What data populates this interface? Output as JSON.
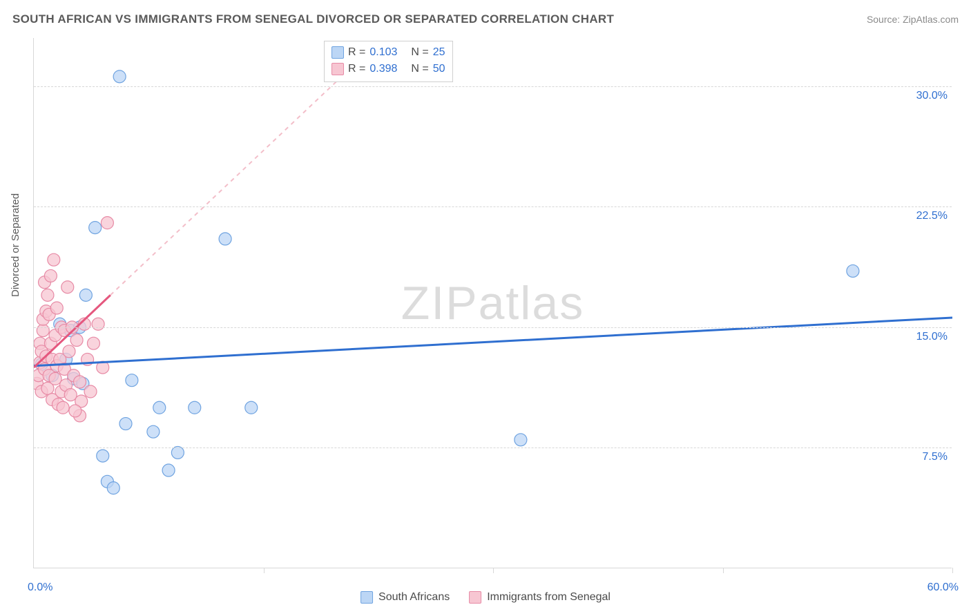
{
  "header": {
    "title": "SOUTH AFRICAN VS IMMIGRANTS FROM SENEGAL DIVORCED OR SEPARATED CORRELATION CHART",
    "source": "Source: ZipAtlas.com"
  },
  "y_axis": {
    "label": "Divorced or Separated"
  },
  "watermark": "ZIPatlas",
  "chart": {
    "type": "scatter",
    "xlim": [
      0,
      60
    ],
    "ylim": [
      0,
      33
    ],
    "x_start_label": "0.0%",
    "x_end_label": "60.0%",
    "xtick_positions": [
      0,
      15,
      30,
      45,
      60
    ],
    "yticks": [
      {
        "v": 7.5,
        "label": "7.5%"
      },
      {
        "v": 15.0,
        "label": "15.0%"
      },
      {
        "v": 22.5,
        "label": "22.5%"
      },
      {
        "v": 30.0,
        "label": "30.0%"
      }
    ],
    "background_color": "#ffffff",
    "grid_color": "#d7d7d7",
    "marker_radius": 9,
    "marker_stroke_width": 1.2,
    "series": [
      {
        "name": "South Africans",
        "fill": "#bcd6f5",
        "stroke": "#6fa3e0",
        "fill_opacity": 0.75,
        "regression": {
          "x1": 0,
          "y1": 12.6,
          "x2": 60,
          "y2": 15.6,
          "color": "#2f6fd0",
          "width": 3,
          "dash": null,
          "extend_dash": false
        },
        "points": [
          [
            0.5,
            12.7
          ],
          [
            1.2,
            12.0
          ],
          [
            1.7,
            15.2
          ],
          [
            2.1,
            13.0
          ],
          [
            2.4,
            14.8
          ],
          [
            2.6,
            11.8
          ],
          [
            3.0,
            15.0
          ],
          [
            3.2,
            11.5
          ],
          [
            3.4,
            17.0
          ],
          [
            4.0,
            21.2
          ],
          [
            4.5,
            7.0
          ],
          [
            4.8,
            5.4
          ],
          [
            5.2,
            5.0
          ],
          [
            5.6,
            30.6
          ],
          [
            6.0,
            9.0
          ],
          [
            6.4,
            11.7
          ],
          [
            7.8,
            8.5
          ],
          [
            8.2,
            10.0
          ],
          [
            8.8,
            6.1
          ],
          [
            9.4,
            7.2
          ],
          [
            10.5,
            10.0
          ],
          [
            12.5,
            20.5
          ],
          [
            14.2,
            10.0
          ],
          [
            31.8,
            8.0
          ],
          [
            53.5,
            18.5
          ]
        ]
      },
      {
        "name": "Immigrants from Senegal",
        "fill": "#f7c6d2",
        "stroke": "#e78aa5",
        "fill_opacity": 0.75,
        "regression": {
          "x1": 0,
          "y1": 12.5,
          "x2": 5.0,
          "y2": 17.0,
          "color": "#e5577e",
          "width": 3,
          "dash": null,
          "extend_dash": true,
          "dash_x2": 22,
          "dash_y2": 32.3,
          "dash_color": "#f3bec9"
        },
        "points": [
          [
            0.2,
            11.5
          ],
          [
            0.3,
            12.0
          ],
          [
            0.4,
            12.8
          ],
          [
            0.4,
            14.0
          ],
          [
            0.5,
            13.5
          ],
          [
            0.5,
            11.0
          ],
          [
            0.6,
            14.8
          ],
          [
            0.6,
            15.5
          ],
          [
            0.7,
            12.4
          ],
          [
            0.7,
            17.8
          ],
          [
            0.8,
            13.2
          ],
          [
            0.8,
            16.0
          ],
          [
            0.9,
            11.2
          ],
          [
            0.9,
            17.0
          ],
          [
            1.0,
            12.0
          ],
          [
            1.0,
            15.8
          ],
          [
            1.1,
            14.0
          ],
          [
            1.1,
            18.2
          ],
          [
            1.2,
            13.0
          ],
          [
            1.2,
            10.5
          ],
          [
            1.3,
            19.2
          ],
          [
            1.4,
            11.8
          ],
          [
            1.4,
            14.5
          ],
          [
            1.5,
            16.2
          ],
          [
            1.5,
            12.6
          ],
          [
            1.6,
            10.2
          ],
          [
            1.7,
            13.0
          ],
          [
            1.8,
            15.0
          ],
          [
            1.8,
            11.0
          ],
          [
            1.9,
            10.0
          ],
          [
            2.0,
            12.4
          ],
          [
            2.0,
            14.8
          ],
          [
            2.1,
            11.4
          ],
          [
            2.2,
            17.5
          ],
          [
            2.3,
            13.5
          ],
          [
            2.4,
            10.8
          ],
          [
            2.5,
            15.0
          ],
          [
            2.6,
            12.0
          ],
          [
            2.8,
            14.2
          ],
          [
            3.0,
            11.6
          ],
          [
            3.1,
            10.4
          ],
          [
            3.3,
            15.2
          ],
          [
            3.5,
            13.0
          ],
          [
            3.7,
            11.0
          ],
          [
            3.9,
            14.0
          ],
          [
            4.2,
            15.2
          ],
          [
            4.5,
            12.5
          ],
          [
            4.8,
            21.5
          ],
          [
            3.0,
            9.5
          ],
          [
            2.7,
            9.8
          ]
        ]
      }
    ]
  },
  "correlation_legend": {
    "rows": [
      {
        "swatch_fill": "#bcd6f5",
        "swatch_stroke": "#6fa3e0",
        "r_label": "R =",
        "r_value": "0.103",
        "n_label": "N =",
        "n_value": "25"
      },
      {
        "swatch_fill": "#f7c6d2",
        "swatch_stroke": "#e78aa5",
        "r_label": "R =",
        "r_value": "0.398",
        "n_label": "N =",
        "n_value": "50"
      }
    ]
  },
  "bottom_legend": {
    "items": [
      {
        "swatch_fill": "#bcd6f5",
        "swatch_stroke": "#6fa3e0",
        "label": "South Africans"
      },
      {
        "swatch_fill": "#f7c6d2",
        "swatch_stroke": "#e78aa5",
        "label": "Immigrants from Senegal"
      }
    ]
  }
}
